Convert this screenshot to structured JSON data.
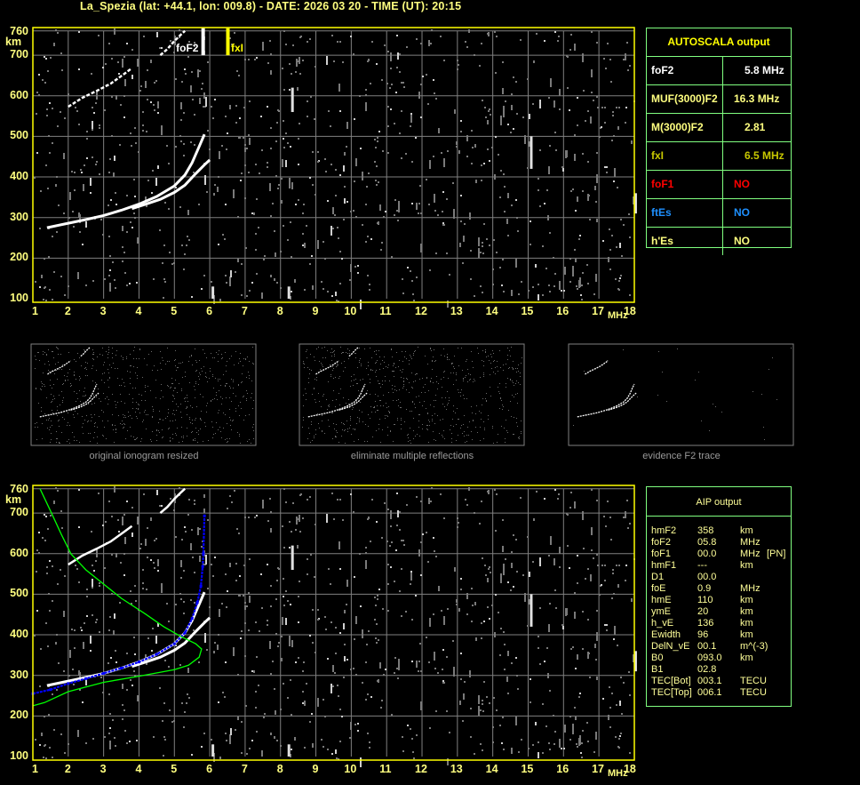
{
  "title": "La_Spezia (lat: +44.1, lon: 009.8) - DATE: 2026 03 20 - TIME (UT): 20:15",
  "colors": {
    "axis": "#ffff00",
    "grid": "#808080",
    "trace": "#ffffff",
    "noise": "#9a9a9a",
    "aip_fit": "#0000ff",
    "profile": "#00ff00",
    "table_border": "#80ff80"
  },
  "chart_data": [
    {
      "type": "scatter",
      "title": "",
      "xlabel": "MHz",
      "ylabel": "km",
      "xlim": [
        1,
        18
      ],
      "ylim": [
        100,
        760
      ],
      "x_ticks": [
        "1",
        "2",
        "3",
        "4",
        "5",
        "6",
        "7",
        "8",
        "9",
        "10",
        "11",
        "12",
        "13",
        "14",
        "15",
        "16",
        "17",
        "18"
      ],
      "y_ticks": [
        "760",
        "700",
        "600",
        "500",
        "400",
        "300",
        "200",
        "100"
      ],
      "grid": true,
      "markers": [
        {
          "label": "foF2",
          "x": 5.8,
          "color": "#ffffff"
        },
        {
          "label": "fxI",
          "x": 6.5,
          "color": "#ffff00"
        }
      ],
      "series": [
        {
          "kind": "o-trace",
          "points": [
            [
              1.4,
              275
            ],
            [
              2,
              286
            ],
            [
              2.5,
              295
            ],
            [
              3,
              305
            ],
            [
              3.5,
              318
            ],
            [
              4,
              333
            ],
            [
              4.5,
              352
            ],
            [
              5,
              378
            ],
            [
              5.3,
              405
            ],
            [
              5.5,
              435
            ],
            [
              5.7,
              475
            ],
            [
              5.85,
              505
            ]
          ]
        },
        {
          "kind": "x-trace",
          "points": [
            [
              3.8,
              322
            ],
            [
              4.2,
              333
            ],
            [
              4.6,
              345
            ],
            [
              5,
              362
            ],
            [
              5.3,
              380
            ],
            [
              5.6,
              408
            ],
            [
              5.85,
              430
            ],
            [
              6.0,
              442
            ]
          ]
        },
        {
          "kind": "second-hop",
          "points": [
            [
              2.0,
              573
            ],
            [
              2.4,
              595
            ],
            [
              2.8,
              612
            ],
            [
              3.2,
              630
            ],
            [
              3.6,
              655
            ],
            [
              3.8,
              668
            ]
          ]
        },
        {
          "kind": "second-hop-upper",
          "points": [
            [
              4.6,
              700
            ],
            [
              4.8,
              715
            ],
            [
              5.0,
              735
            ],
            [
              5.2,
              752
            ],
            [
              5.3,
              760
            ]
          ]
        }
      ]
    },
    {
      "type": "line",
      "title": "",
      "xlabel": "MHz",
      "ylabel": "km",
      "xlim": [
        1,
        18
      ],
      "ylim": [
        100,
        760
      ],
      "x_ticks": [
        "1",
        "2",
        "3",
        "4",
        "5",
        "6",
        "7",
        "8",
        "9",
        "10",
        "11",
        "12",
        "13",
        "14",
        "15",
        "16",
        "17",
        "18"
      ],
      "y_ticks": [
        "760",
        "700",
        "600",
        "500",
        "400",
        "300",
        "200",
        "100"
      ],
      "grid": true,
      "series": [
        {
          "kind": "aip-fit",
          "color": "#0000ff",
          "points": [
            [
              1,
              255
            ],
            [
              1.5,
              265
            ],
            [
              2,
              280
            ],
            [
              2.5,
              292
            ],
            [
              3,
              305
            ],
            [
              3.5,
              318
            ],
            [
              4,
              333
            ],
            [
              4.5,
              352
            ],
            [
              5,
              378
            ],
            [
              5.3,
              405
            ],
            [
              5.5,
              440
            ],
            [
              5.65,
              480
            ],
            [
              5.75,
              520
            ],
            [
              5.8,
              568
            ],
            [
              5.82,
              600
            ],
            [
              5.85,
              693
            ]
          ]
        },
        {
          "kind": "profile",
          "color": "#00ff00",
          "points": [
            [
              1.2,
              760
            ],
            [
              1.5,
              705
            ],
            [
              1.8,
              648
            ],
            [
              2.08,
              599
            ],
            [
              2.5,
              560
            ],
            [
              3,
              525
            ],
            [
              3.5,
              490
            ],
            [
              4.17,
              452
            ],
            [
              4.7,
              420
            ],
            [
              5.2,
              395
            ],
            [
              5.6,
              378
            ],
            [
              5.77,
              365
            ],
            [
              5.7,
              345
            ],
            [
              5.4,
              325
            ],
            [
              5,
              314
            ],
            [
              4,
              298
            ],
            [
              3,
              283
            ],
            [
              2,
              260
            ],
            [
              1.33,
              233
            ],
            [
              1,
              225
            ]
          ]
        }
      ]
    }
  ],
  "thumbnails": [
    {
      "caption": "original ionogram resized",
      "noise": "high"
    },
    {
      "caption": "eliminate multiple reflections",
      "noise": "high"
    },
    {
      "caption": "evidence F2 trace",
      "noise": "low"
    }
  ],
  "autoscala": {
    "title": "AUTOSCALA output",
    "rows": [
      {
        "label": "foF2",
        "value": "5.8 MHz",
        "color": "#ffffff"
      },
      {
        "label": "MUF(3000)F2",
        "value": "16.3 MHz",
        "color": "#ffff80"
      },
      {
        "label": "M(3000)F2",
        "value": "2.81",
        "color": "#ffff80"
      },
      {
        "label": "fxI",
        "value": "6.5 MHz",
        "color": "#c8c800"
      },
      {
        "label": "foF1",
        "value": "NO",
        "color": "#ff0000"
      },
      {
        "label": "ftEs",
        "value": "NO",
        "color": "#1e90ff"
      },
      {
        "label": "h'Es",
        "value": "NO",
        "color": "#ffff80"
      }
    ]
  },
  "aip": {
    "title": "AIP output",
    "rows": [
      {
        "name": "hmF2",
        "value": "358",
        "unit": "km",
        "note": ""
      },
      {
        "name": "foF2",
        "value": "05.8",
        "unit": "MHz",
        "note": ""
      },
      {
        "name": "foF1",
        "value": "00.0",
        "unit": "MHz",
        "note": "[PN]"
      },
      {
        "name": "hmF1",
        "value": "---",
        "unit": "km",
        "note": ""
      },
      {
        "name": "D1",
        "value": "00.0",
        "unit": "",
        "note": ""
      },
      {
        "name": "foE",
        "value": "0.9",
        "unit": "MHz",
        "note": ""
      },
      {
        "name": "hmE",
        "value": "110",
        "unit": "km",
        "note": ""
      },
      {
        "name": "ymE",
        "value": "20",
        "unit": "km",
        "note": ""
      },
      {
        "name": "h_vE",
        "value": "136",
        "unit": "km",
        "note": ""
      },
      {
        "name": "Ewidth",
        "value": "96",
        "unit": "km",
        "note": ""
      },
      {
        "name": "DelN_vE",
        "value": "00.1",
        "unit": "m^(-3)",
        "note": ""
      },
      {
        "name": "B0",
        "value": "093.0",
        "unit": "km",
        "note": ""
      },
      {
        "name": "B1",
        "value": "02.8",
        "unit": "",
        "note": ""
      },
      {
        "name": "TEC[Bot]",
        "value": "003.1",
        "unit": "TECU",
        "note": ""
      },
      {
        "name": "TEC[Top]",
        "value": "006.1",
        "unit": "TECU",
        "note": ""
      }
    ]
  }
}
